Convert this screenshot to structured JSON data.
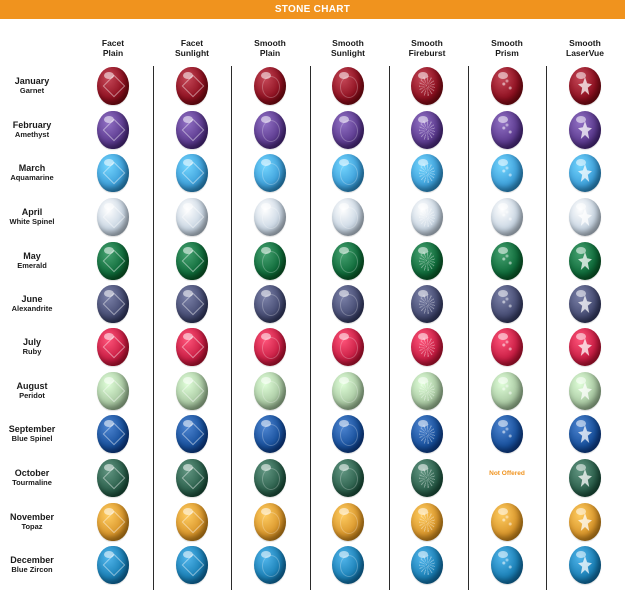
{
  "title": "STONE CHART",
  "columns": [
    {
      "line1": "Facet",
      "line2": "Plain",
      "style": "facet"
    },
    {
      "line1": "Facet",
      "line2": "Sunlight",
      "style": "facet"
    },
    {
      "line1": "Smooth",
      "line2": "Plain",
      "style": "smooth"
    },
    {
      "line1": "Smooth",
      "line2": "Sunlight",
      "style": "smooth"
    },
    {
      "line1": "Smooth",
      "line2": "Fireburst",
      "style": "burst"
    },
    {
      "line1": "Smooth",
      "line2": "Prism",
      "style": "prism"
    },
    {
      "line1": "Smooth",
      "line2": "LaserVue",
      "style": "laser"
    }
  ],
  "rows": [
    {
      "month": "January",
      "stone": "Garnet",
      "color": "#8e1020"
    },
    {
      "month": "February",
      "stone": "Amethyst",
      "color": "#5b3a8e"
    },
    {
      "month": "March",
      "stone": "Aquamarine",
      "color": "#3d9fd9"
    },
    {
      "month": "April",
      "stone": "White Spinel",
      "color": "#c9d6e3"
    },
    {
      "month": "May",
      "stone": "Emerald",
      "color": "#0f6b3a"
    },
    {
      "month": "June",
      "stone": "Alexandrite",
      "color": "#454b72"
    },
    {
      "month": "July",
      "stone": "Ruby",
      "color": "#c81d43"
    },
    {
      "month": "August",
      "stone": "Peridot",
      "color": "#a9c8a2"
    },
    {
      "month": "September",
      "stone": "Blue Spinel",
      "color": "#174f9b"
    },
    {
      "month": "October",
      "stone": "Tourmaline",
      "color": "#2b5f4b"
    },
    {
      "month": "November",
      "stone": "Topaz",
      "color": "#d9962b"
    },
    {
      "month": "December",
      "stone": "Blue Zircon",
      "color": "#1a7fb5"
    }
  ],
  "not_offered": {
    "row": 9,
    "col": 5,
    "label": "Not Offered"
  },
  "colors": {
    "banner": "#f0931e",
    "not_offered": "#f0931e",
    "divider": "#2b2b2b"
  }
}
